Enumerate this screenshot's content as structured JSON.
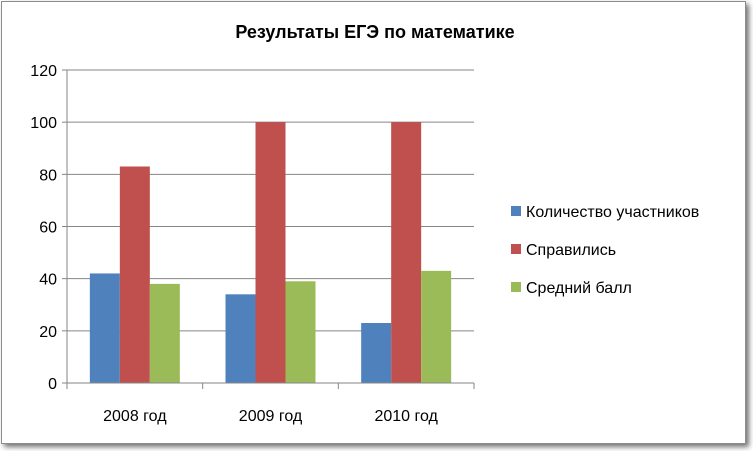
{
  "chart_data": {
    "type": "bar",
    "title": "Результаты ЕГЭ по математике",
    "xlabel": "",
    "ylabel": "",
    "categories": [
      "2008 год",
      "2009 год",
      "2010 год"
    ],
    "series": [
      {
        "name": "Количество участников",
        "values": [
          42,
          34,
          23
        ],
        "color": "#4f81bd"
      },
      {
        "name": "Справились",
        "values": [
          83,
          100,
          100
        ],
        "color": "#c0504d"
      },
      {
        "name": "Средний балл",
        "values": [
          38,
          39,
          43
        ],
        "color": "#9bbb59"
      }
    ],
    "ylim": [
      0,
      120
    ],
    "yticks": [
      0,
      20,
      40,
      60,
      80,
      100,
      120
    ],
    "grid": true,
    "legend_position": "right"
  }
}
